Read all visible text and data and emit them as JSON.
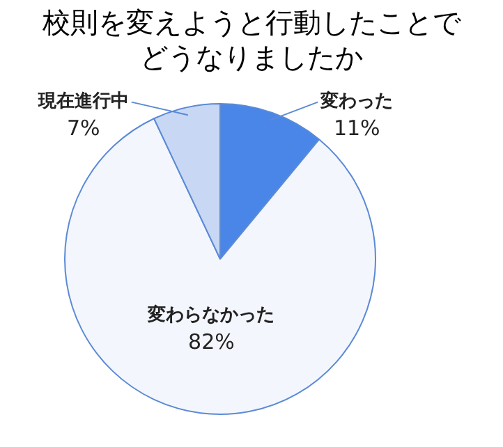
{
  "chart_data": {
    "type": "pie",
    "title": "校則を変えようと行動したことでどうなりましたか",
    "categories": [
      "変わった",
      "変わらなかった",
      "現在進行中"
    ],
    "values": [
      11,
      82,
      7
    ],
    "colors": [
      "#4a86e8",
      "#f3f6fc",
      "#c8d8f4"
    ],
    "value_labels": [
      "11%",
      "82%",
      "7%"
    ],
    "legend": false
  }
}
